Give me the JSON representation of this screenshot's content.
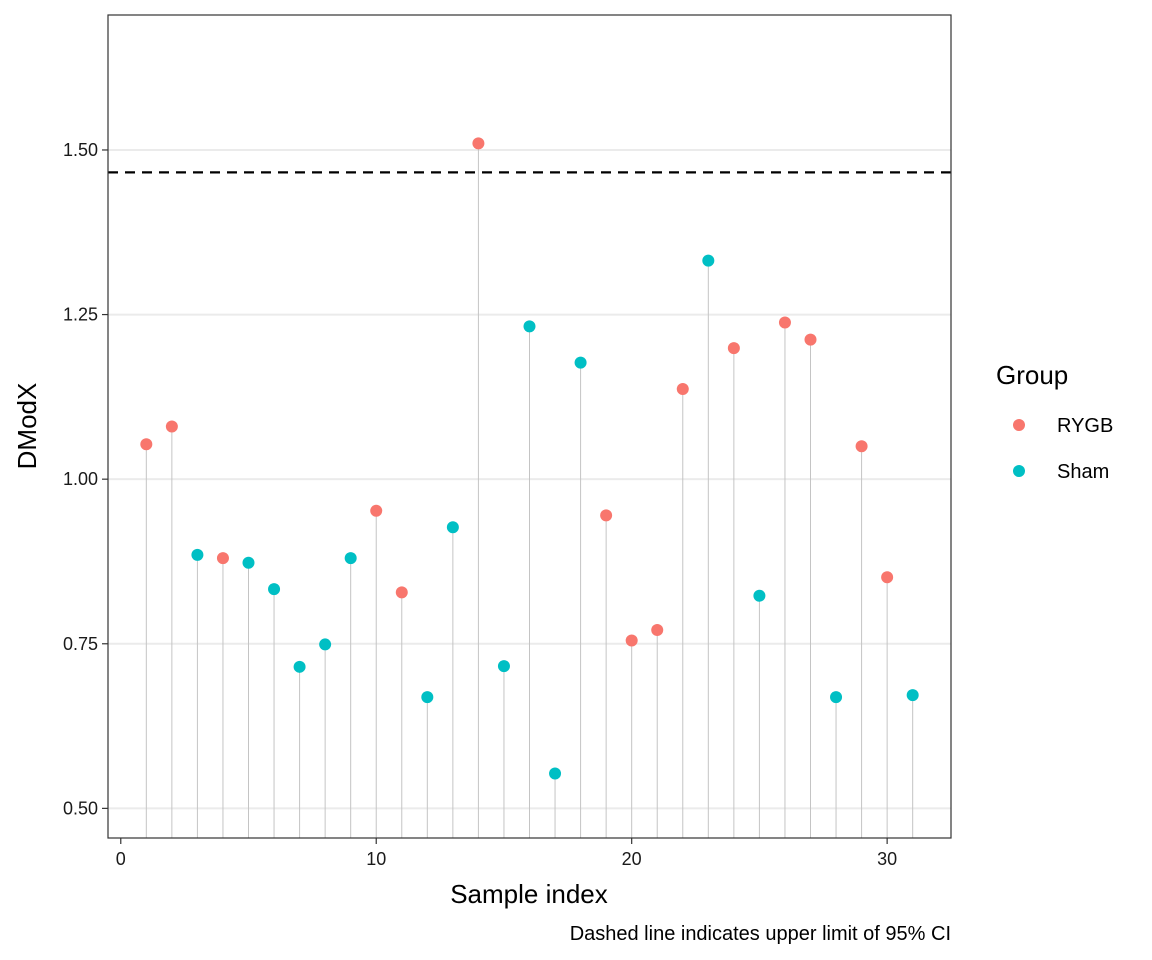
{
  "chart_data": {
    "type": "scatter",
    "style": "lollipop",
    "xlabel": "Sample index",
    "ylabel": "DModX",
    "caption": "Dashed line indicates upper limit of 95% CI",
    "xlim": [
      -0.5,
      32.5
    ],
    "ylim": [
      0.455,
      1.705
    ],
    "x_ticks": [
      0,
      10,
      20,
      30
    ],
    "x_tick_labels": [
      "0",
      "10",
      "20",
      "30"
    ],
    "y_ticks": [
      0.5,
      0.75,
      1.0,
      1.25,
      1.5
    ],
    "y_tick_labels": [
      "0.50",
      "0.75",
      "1.00",
      "1.25",
      "1.50"
    ],
    "threshold": 1.466,
    "grid": "horizontal-major",
    "legend": {
      "title": "Group",
      "placement": "right",
      "entries": [
        {
          "label": "RYGB",
          "color": "#F8766D"
        },
        {
          "label": "Sham",
          "color": "#00BFC4"
        }
      ]
    },
    "points": [
      {
        "x": 1,
        "y": 1.053,
        "group": "RYGB"
      },
      {
        "x": 2,
        "y": 1.08,
        "group": "RYGB"
      },
      {
        "x": 3,
        "y": 0.885,
        "group": "Sham"
      },
      {
        "x": 4,
        "y": 0.88,
        "group": "RYGB"
      },
      {
        "x": 5,
        "y": 0.873,
        "group": "Sham"
      },
      {
        "x": 6,
        "y": 0.833,
        "group": "Sham"
      },
      {
        "x": 7,
        "y": 0.715,
        "group": "Sham"
      },
      {
        "x": 8,
        "y": 0.749,
        "group": "Sham"
      },
      {
        "x": 9,
        "y": 0.88,
        "group": "Sham"
      },
      {
        "x": 10,
        "y": 0.952,
        "group": "RYGB"
      },
      {
        "x": 11,
        "y": 0.828,
        "group": "RYGB"
      },
      {
        "x": 12,
        "y": 0.669,
        "group": "Sham"
      },
      {
        "x": 13,
        "y": 0.927,
        "group": "Sham"
      },
      {
        "x": 14,
        "y": 1.51,
        "group": "RYGB"
      },
      {
        "x": 15,
        "y": 0.716,
        "group": "Sham"
      },
      {
        "x": 16,
        "y": 1.232,
        "group": "Sham"
      },
      {
        "x": 17,
        "y": 0.553,
        "group": "Sham"
      },
      {
        "x": 18,
        "y": 1.177,
        "group": "Sham"
      },
      {
        "x": 19,
        "y": 0.945,
        "group": "RYGB"
      },
      {
        "x": 20,
        "y": 0.755,
        "group": "RYGB"
      },
      {
        "x": 21,
        "y": 0.771,
        "group": "RYGB"
      },
      {
        "x": 22,
        "y": 1.137,
        "group": "RYGB"
      },
      {
        "x": 23,
        "y": 1.332,
        "group": "Sham"
      },
      {
        "x": 24,
        "y": 1.199,
        "group": "RYGB"
      },
      {
        "x": 25,
        "y": 0.823,
        "group": "Sham"
      },
      {
        "x": 26,
        "y": 1.238,
        "group": "RYGB"
      },
      {
        "x": 27,
        "y": 1.212,
        "group": "RYGB"
      },
      {
        "x": 28,
        "y": 0.669,
        "group": "Sham"
      },
      {
        "x": 29,
        "y": 1.05,
        "group": "RYGB"
      },
      {
        "x": 30,
        "y": 0.851,
        "group": "RYGB"
      },
      {
        "x": 31,
        "y": 0.672,
        "group": "Sham"
      }
    ]
  }
}
